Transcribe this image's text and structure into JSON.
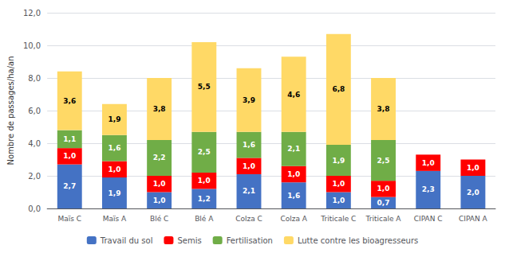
{
  "chart_data": {
    "type": "bar",
    "stacked": true,
    "ylabel": "Nombre de passages/ha/an",
    "categories": [
      "Maïs C",
      "Maïs A",
      "Blé C",
      "Blé A",
      "Colza C",
      "Colza A",
      "Triticale C",
      "Triticale A",
      "CIPAN C",
      "CIPAN A"
    ],
    "series": [
      {
        "name": "Travail du sol",
        "color": "#4472C4",
        "values": [
          2.7,
          1.9,
          1.0,
          1.2,
          2.1,
          1.6,
          1.0,
          0.7,
          2.3,
          2.0
        ],
        "value_labels": [
          "2,7",
          "1,9",
          "1,0",
          "1,2",
          "2,1",
          "1,6",
          "1,0",
          "0,7",
          "2,3",
          "2,0"
        ]
      },
      {
        "name": "Semis",
        "color": "#FF0000",
        "values": [
          1.0,
          1.0,
          1.0,
          1.0,
          1.0,
          1.0,
          1.0,
          1.0,
          1.0,
          1.0
        ],
        "value_labels": [
          "1,0",
          "1,0",
          "1,0",
          "1,0",
          "1,0",
          "1,0",
          "1,0",
          "1,0",
          "1,0",
          "1,0"
        ]
      },
      {
        "name": "Fertilisation",
        "color": "#70AD47",
        "values": [
          1.1,
          1.6,
          2.2,
          2.5,
          1.6,
          2.1,
          1.9,
          2.5,
          0.0,
          0.0
        ],
        "value_labels": [
          "1,1",
          "1,6",
          "2,2",
          "2,5",
          "1,6",
          "2,1",
          "1,9",
          "2,5",
          null,
          null
        ]
      },
      {
        "name": "Lutte contre les bioagresseurs",
        "color": "#FFD966",
        "values": [
          3.6,
          1.9,
          3.8,
          5.5,
          3.9,
          4.6,
          6.8,
          3.8,
          0.0,
          0.0
        ],
        "value_labels": [
          "3,6",
          "1,9",
          "3,8",
          "5,5",
          "3,9",
          "4,6",
          "6,8",
          "3,8",
          null,
          null
        ]
      }
    ],
    "ylim": [
      0,
      12
    ],
    "yticks": [
      {
        "value": 0,
        "label": "0,0"
      },
      {
        "value": 2,
        "label": "2,0"
      },
      {
        "value": 4,
        "label": "4,0"
      },
      {
        "value": 6,
        "label": "6,0"
      },
      {
        "value": 8,
        "label": "8,0"
      },
      {
        "value": 10,
        "label": "10,0"
      },
      {
        "value": 12,
        "label": "12,0"
      }
    ],
    "grid": true,
    "legend": "bottom",
    "data_labels": true
  }
}
